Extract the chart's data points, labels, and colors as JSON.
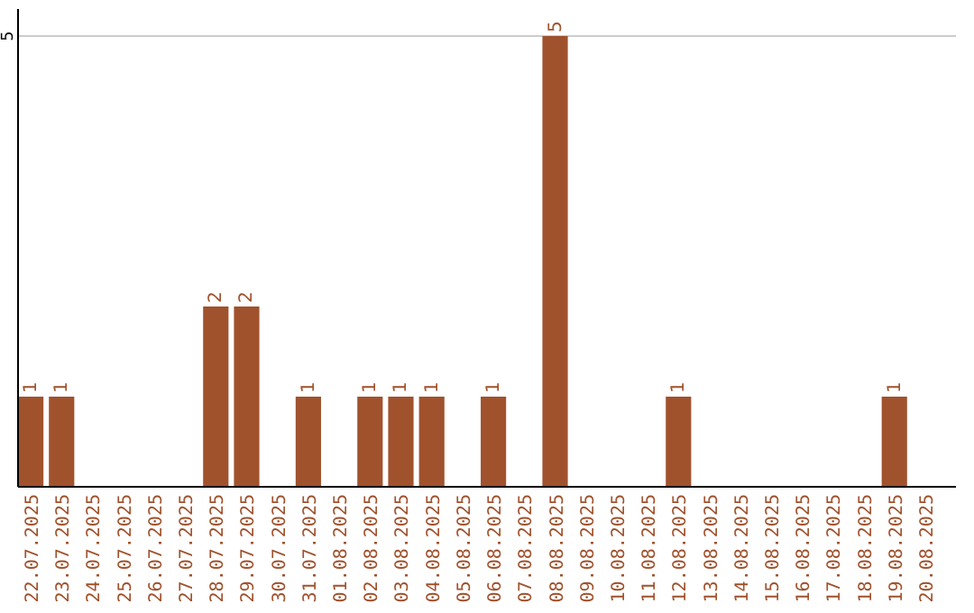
{
  "chart_data": {
    "type": "bar",
    "categories": [
      "22.07.2025",
      "23.07.2025",
      "24.07.2025",
      "25.07.2025",
      "26.07.2025",
      "27.07.2025",
      "28.07.2025",
      "29.07.2025",
      "30.07.2025",
      "31.07.2025",
      "01.08.2025",
      "02.08.2025",
      "03.08.2025",
      "04.08.2025",
      "05.08.2025",
      "06.08.2025",
      "07.08.2025",
      "08.08.2025",
      "09.08.2025",
      "10.08.2025",
      "11.08.2025",
      "12.08.2025",
      "13.08.2025",
      "14.08.2025",
      "15.08.2025",
      "16.08.2025",
      "17.08.2025",
      "18.08.2025",
      "19.08.2025",
      "20.08.2025"
    ],
    "values": [
      1,
      1,
      0,
      0,
      0,
      0,
      2,
      2,
      0,
      1,
      0,
      1,
      1,
      1,
      0,
      1,
      0,
      5,
      0,
      0,
      0,
      1,
      0,
      0,
      0,
      0,
      0,
      0,
      1,
      0
    ],
    "value_labels": [
      "1",
      "1",
      null,
      null,
      null,
      null,
      "2",
      "2",
      null,
      "1",
      null,
      "1",
      "1",
      "1",
      null,
      "1",
      null,
      "5",
      null,
      null,
      null,
      "1",
      null,
      null,
      null,
      null,
      null,
      null,
      "1",
      null
    ],
    "color": "#a0522d",
    "ylim": [
      0,
      5.3
    ],
    "yticks": [
      5
    ],
    "grid": "y"
  }
}
